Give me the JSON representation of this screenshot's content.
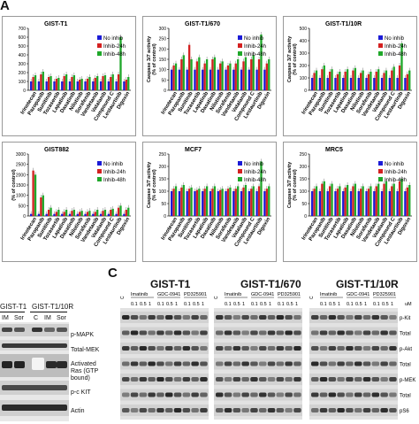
{
  "panels": {
    "a": "A",
    "c": "C"
  },
  "drug_labels": [
    "Irinotecan",
    "Pazopanib",
    "Sunitinib",
    "Tozasertib",
    "Lapatinib",
    "Dasatinib",
    "Nilotinib",
    "Sorafenib",
    "Vandetanib",
    "Vatalanib",
    "Compound C",
    "Lestaurtinib",
    "Digoxin"
  ],
  "legend": [
    "No inhib",
    "Inhib-24h",
    "Inhib-48h"
  ],
  "colors": {
    "no_inhib": "#1b1bd6",
    "inhib24": "#d42020",
    "inhib48": "#1fa82a"
  },
  "ylabel": "Caspase 3/7 activity\n(% of control)",
  "chart_data": [
    {
      "type": "bar",
      "title": "GIST-T1",
      "ylabel": "",
      "ylim": [
        0,
        700
      ],
      "yticks": [
        "0",
        "100",
        "200",
        "300",
        "400",
        "500",
        "600",
        "700"
      ],
      "categories": [
        "Irinotecan",
        "Pazopanib",
        "Sunitinib",
        "Tozasertib",
        "Lapatinib",
        "Dasatinib",
        "Nilotinib",
        "Sorafenib",
        "Vandetanib",
        "Vatalanib",
        "Compound C",
        "Lestaurtinib",
        "Digoxin"
      ],
      "series": [
        {
          "name": "No inhib",
          "values": [
            100,
            100,
            100,
            100,
            100,
            100,
            100,
            100,
            100,
            100,
            100,
            100,
            100
          ]
        },
        {
          "name": "Inhib-24h",
          "values": [
            150,
            180,
            150,
            130,
            160,
            150,
            120,
            130,
            140,
            160,
            150,
            180,
            120
          ]
        },
        {
          "name": "Inhib-48h",
          "values": [
            170,
            210,
            160,
            140,
            180,
            170,
            130,
            150,
            160,
            170,
            180,
            600,
            150
          ]
        }
      ]
    },
    {
      "type": "bar",
      "title": "GIST-T1/670",
      "ylabel": "Caspase 3/7 activity (% of control)",
      "ylim": [
        0,
        300
      ],
      "yticks": [
        "0",
        "50",
        "100",
        "150",
        "200",
        "250",
        "300"
      ],
      "categories": [
        "Irinotecan",
        "Pazopanib",
        "Sunitinib",
        "Tozasertib",
        "Lapatinib",
        "Dasatinib",
        "Nilotinib",
        "Sorafenib",
        "Vandetanib",
        "Vatalanib",
        "Compound C",
        "Lestaurtinib",
        "Digoxin"
      ],
      "series": [
        {
          "name": "No inhib",
          "values": [
            100,
            100,
            100,
            100,
            100,
            100,
            100,
            100,
            100,
            100,
            100,
            100,
            100
          ]
        },
        {
          "name": "Inhib-24h",
          "values": [
            120,
            150,
            220,
            140,
            130,
            150,
            130,
            120,
            130,
            140,
            150,
            150,
            130
          ]
        },
        {
          "name": "Inhib-48h",
          "values": [
            130,
            170,
            150,
            160,
            150,
            160,
            140,
            130,
            150,
            160,
            170,
            270,
            150
          ]
        }
      ]
    },
    {
      "type": "bar",
      "title": "GIST-T1/10R",
      "ylabel": "Caspase 3/7 activity (% of control)",
      "ylim": [
        0,
        500
      ],
      "yticks": [
        "0",
        "100",
        "200",
        "300",
        "400",
        "500"
      ],
      "categories": [
        "Irinotecan",
        "Pazopanib",
        "Sunitinib",
        "Tozasertib",
        "Lapatinib",
        "Dasatinib",
        "Nilotinib",
        "Sorafenib",
        "Vandetanib",
        "Vatalanib",
        "Compound C",
        "Lestaurtinib",
        "Digoxin"
      ],
      "series": [
        {
          "name": "No inhib",
          "values": [
            100,
            100,
            100,
            100,
            100,
            100,
            100,
            100,
            100,
            100,
            100,
            100,
            100
          ]
        },
        {
          "name": "Inhib-24h",
          "values": [
            140,
            170,
            150,
            130,
            150,
            160,
            140,
            130,
            150,
            140,
            160,
            200,
            130
          ]
        },
        {
          "name": "Inhib-48h",
          "values": [
            160,
            200,
            170,
            150,
            170,
            180,
            160,
            150,
            170,
            160,
            190,
            380,
            160
          ]
        }
      ]
    },
    {
      "type": "bar",
      "title": "GIST882",
      "ylabel": "(% of control)",
      "ylim": [
        0,
        3000
      ],
      "yticks": [
        "0",
        "500",
        "1000",
        "1500",
        "2000",
        "2500",
        "3000"
      ],
      "categories": [
        "Irinotecan",
        "Pazopanib",
        "Sunitinib",
        "Tozasertib",
        "Lapatinib",
        "Dasatinib",
        "Nilotinib",
        "Sorafenib",
        "Vandetanib",
        "Vatalanib",
        "Compound C",
        "Lestaurtinib",
        "Digoxin"
      ],
      "series": [
        {
          "name": "No inhib",
          "values": [
            100,
            100,
            100,
            100,
            100,
            100,
            100,
            100,
            100,
            100,
            100,
            100,
            100
          ]
        },
        {
          "name": "Inhib-24h",
          "values": [
            2200,
            900,
            300,
            200,
            200,
            250,
            200,
            200,
            200,
            250,
            300,
            400,
            300
          ]
        },
        {
          "name": "Inhib-48h",
          "values": [
            2000,
            1000,
            400,
            300,
            300,
            300,
            250,
            250,
            300,
            300,
            350,
            500,
            400
          ]
        }
      ]
    },
    {
      "type": "bar",
      "title": "MCF7",
      "ylabel": "Caspase 3/7 activity (% of control)",
      "ylim": [
        0,
        250
      ],
      "yticks": [
        "0",
        "50",
        "100",
        "150",
        "200",
        "250"
      ],
      "categories": [
        "Irinotecan",
        "Pazopanib",
        "Sunitinib",
        "Tozasertib",
        "Lapatinib",
        "Dasatinib",
        "Nilotinib",
        "Sorafenib",
        "Vandetanib",
        "Vatalanib",
        "Compound C",
        "Lestaurtinib",
        "Digoxin"
      ],
      "series": [
        {
          "name": "No inhib",
          "values": [
            100,
            100,
            100,
            100,
            100,
            100,
            100,
            100,
            100,
            100,
            100,
            100,
            100
          ]
        },
        {
          "name": "Inhib-24h",
          "values": [
            110,
            115,
            110,
            105,
            110,
            110,
            105,
            110,
            110,
            115,
            110,
            120,
            110
          ]
        },
        {
          "name": "Inhib-48h",
          "values": [
            120,
            125,
            115,
            110,
            120,
            120,
            110,
            115,
            120,
            125,
            120,
            220,
            120
          ]
        }
      ]
    },
    {
      "type": "bar",
      "title": "MRC5",
      "ylabel": "Caspase 3/7 activity (% of control)",
      "ylim": [
        0,
        250
      ],
      "yticks": [
        "0",
        "50",
        "100",
        "150",
        "200",
        "250"
      ],
      "categories": [
        "Irinotecan",
        "Pazopanib",
        "Sunitinib",
        "Tozasertib",
        "Lapatinib",
        "Dasatinib",
        "Nilotinib",
        "Sorafenib",
        "Vandetanib",
        "Vatalanib",
        "Compound C",
        "Lestaurtinib",
        "Digoxin"
      ],
      "series": [
        {
          "name": "No inhib",
          "values": [
            100,
            100,
            100,
            100,
            100,
            100,
            100,
            100,
            100,
            100,
            100,
            100,
            100
          ]
        },
        {
          "name": "Inhib-24h",
          "values": [
            110,
            130,
            120,
            110,
            115,
            120,
            110,
            110,
            120,
            130,
            120,
            140,
            115
          ]
        },
        {
          "name": "Inhib-48h",
          "values": [
            120,
            140,
            130,
            120,
            125,
            130,
            120,
            120,
            130,
            140,
            130,
            150,
            125
          ]
        }
      ]
    }
  ],
  "blot_left": {
    "groups": [
      "GIST-T1",
      "GIST-T1/10R"
    ],
    "lanes": [
      "IM",
      "Sor",
      "C",
      "IM",
      "Sor"
    ],
    "rows": [
      "p-MAPK",
      "Total-MEK",
      "Activated Ras (GTP bound)",
      "p-c KIT",
      "Actin"
    ]
  },
  "blot_right": {
    "panels": [
      {
        "title": "GIST-T1",
        "drugs": [
          "Imatinib",
          "GDC-0941",
          "PD325901"
        ],
        "conc": [
          "0.1",
          "0.5",
          "1",
          "0.1",
          "0.5",
          "1",
          "0.1",
          "0.5",
          "1"
        ],
        "control": "C"
      },
      {
        "title": "GIST-T1/670",
        "drugs": [
          "Imatinib",
          "GDC-0941",
          "PD325901"
        ],
        "conc": [
          "0.1",
          "0.5",
          "1",
          "0.1",
          "0.5",
          "1",
          "0.1",
          "0.5",
          "1"
        ],
        "control": "C"
      },
      {
        "title": "GIST-T1/10R",
        "drugs": [
          "Imatinib",
          "GDC-0941",
          "PD325901"
        ],
        "conc": [
          "0.1",
          "0.5",
          "1",
          "0.1",
          "0.5",
          "1",
          "0.1",
          "0.5",
          "1"
        ],
        "control": "C"
      }
    ],
    "unit": "uM",
    "rows": [
      "p-Kit",
      "Total",
      "p-Akt",
      "Total",
      "p-MEK",
      "Total",
      "pS6"
    ]
  }
}
